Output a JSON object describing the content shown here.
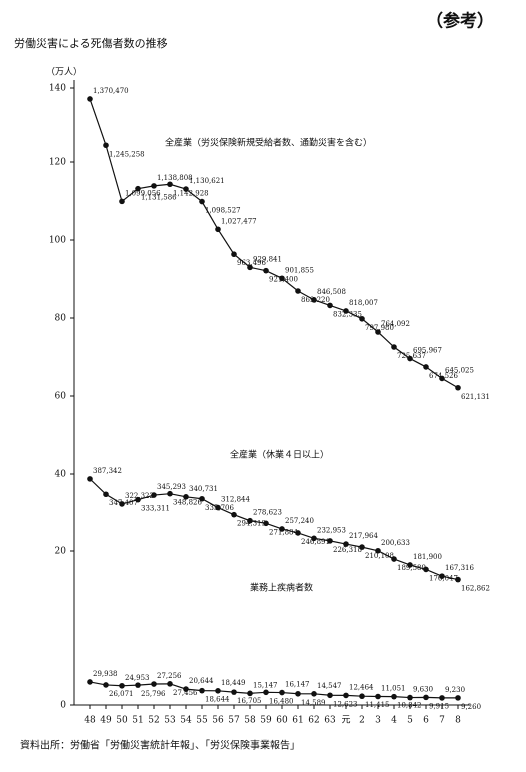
{
  "page_label": "（参考）",
  "chart_data": {
    "type": "line",
    "title": "労働災害による死傷者数の推移",
    "y_unit_label": "（万人）",
    "categories": [
      "48",
      "49",
      "50",
      "51",
      "52",
      "53",
      "54",
      "55",
      "56",
      "57",
      "58",
      "59",
      "60",
      "61",
      "62",
      "63",
      "元",
      "2",
      "3",
      "4",
      "5",
      "6",
      "7",
      "8"
    ],
    "ylim": [
      0,
      140
    ],
    "yticks": [
      0,
      20,
      40,
      60,
      80,
      100,
      120,
      140
    ],
    "series": [
      {
        "name": "全産業（労災保険新規受給者数、通勤災害を含む）",
        "color": "#111111",
        "values": [
          137.047,
          124.5258,
          109.9056,
          113.1586,
          113.8808,
          114.2928,
          113.0621,
          109.8527,
          102.7477,
          96.3496,
          92.9841,
          92.14,
          90.1855,
          86.922,
          84.6508,
          83.2335,
          81.8007,
          79.798,
          76.4092,
          72.5637,
          69.5967,
          67.4526,
          64.5025,
          62.1131
        ],
        "value_labels": [
          "1,370,470",
          "1,245,258",
          "1,099,056",
          "1,131,586",
          "1,138,808",
          "1,142,928",
          "1,130,621",
          "1,098,527",
          "1,027,477",
          "963,496",
          "929,841",
          "921,400",
          "901,855",
          "869,220",
          "846,508",
          "832,335",
          "818,007",
          "797,980",
          "764,092",
          "725,637",
          "695,967",
          "674,526",
          "645,025",
          "621,131"
        ]
      },
      {
        "name": "全産業（休業４日以上）",
        "color": "#111111",
        "values": [
          38.7342,
          34.7407,
          32.2322,
          33.3311,
          34.5293,
          34.8826,
          34.0731,
          33.5706,
          31.2844,
          29.4319,
          27.8623,
          27.1884,
          25.724,
          24.6891,
          23.2953,
          22.6318,
          21.7964,
          21.0108,
          20.0633,
          18.9589,
          18.19,
          17.6047,
          16.7316,
          16.2862
        ],
        "value_labels": [
          "387,342",
          "347,407",
          "322,322",
          "333,311",
          "345,293",
          "348,826",
          "340,731",
          "335,706",
          "312,844",
          "294,319",
          "278,623",
          "271,884",
          "257,240",
          "246,891",
          "232,953",
          "226,318",
          "217,964",
          "210,108",
          "200,633",
          "189,589",
          "181,900",
          "176,047",
          "167,316",
          "162,862"
        ]
      },
      {
        "name": "業務上疾病者数",
        "color": "#111111",
        "values": [
          2.9938,
          2.6071,
          2.4953,
          2.5796,
          2.7256,
          2.7456,
          2.0644,
          1.8644,
          1.8449,
          1.6705,
          1.5147,
          1.648,
          1.6147,
          1.4589,
          1.4547,
          1.2623,
          1.2464,
          1.1415,
          1.1051,
          1.0842,
          0.963,
          0.9915,
          0.923,
          0.926
        ],
        "value_labels": [
          "29,938",
          "26,071",
          "24,953",
          "25,796",
          "27,256",
          "27,456",
          "20,644",
          "18,644",
          "18,449",
          "16,705",
          "15,147",
          "16,480",
          "16,147",
          "14,589",
          "14,547",
          "12,623",
          "12,464",
          "11,415",
          "11,051",
          "10,842",
          "9,630",
          "9,915",
          "9,230",
          "9,260"
        ]
      }
    ],
    "source": "資料出所：労働省「労働災害統計年報」、「労災保険事業報告」"
  }
}
